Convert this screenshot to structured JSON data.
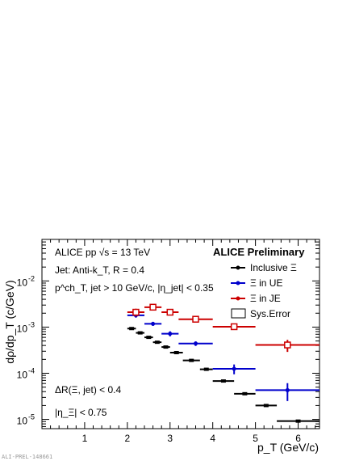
{
  "chart_data": {
    "type": "scatter",
    "title": "ALICE Preliminary",
    "xlabel": "p_T (GeV/c)",
    "ylabel": "dρ/dp_T (c/GeV)",
    "xlim": [
      0,
      6.5
    ],
    "ylim_log": [
      -5.2,
      -1.1
    ],
    "y_scale": "log",
    "x_ticks": [
      1,
      2,
      3,
      4,
      5,
      6
    ],
    "y_ticks": [
      {
        "exp": -5,
        "label": "10"
      },
      {
        "exp": -4,
        "label": "10"
      },
      {
        "exp": -3,
        "label": "10"
      },
      {
        "exp": -2,
        "label": "10"
      }
    ],
    "legend_position": "top-right",
    "legend": [
      {
        "label": "Inclusive Ξ",
        "color": "#000000"
      },
      {
        "label": "Ξ in UE",
        "color": "#0000cc"
      },
      {
        "label": "Ξ in JE",
        "color": "#cc0000"
      },
      {
        "label": "Sys.Error",
        "color": "#000000"
      }
    ],
    "annotations": [
      "ALICE pp √s = 13 TeV",
      "Jet: Anti-k_T, R = 0.4",
      "p^ch_T, jet > 10 GeV/c, |η_jet| < 0.35",
      "ΔR(Ξ, jet) < 0.4",
      "|η_Ξ| < 0.75"
    ],
    "watermark": "ALI-PREL-148661",
    "series": [
      {
        "name": "Inclusive Ξ",
        "color": "#000000",
        "marker": "filled-square",
        "points": [
          {
            "x": 2.1,
            "xerr": 0.1,
            "y": 0.00093
          },
          {
            "x": 2.3,
            "xerr": 0.1,
            "y": 0.00075
          },
          {
            "x": 2.5,
            "xerr": 0.1,
            "y": 0.0006
          },
          {
            "x": 2.7,
            "xerr": 0.1,
            "y": 0.00047
          },
          {
            "x": 2.9,
            "xerr": 0.1,
            "y": 0.00037
          },
          {
            "x": 3.15,
            "xerr": 0.15,
            "y": 0.00028
          },
          {
            "x": 3.5,
            "xerr": 0.2,
            "y": 0.00019
          },
          {
            "x": 3.85,
            "xerr": 0.15,
            "y": 0.000122
          },
          {
            "x": 4.25,
            "xerr": 0.25,
            "y": 6.8e-05
          },
          {
            "x": 4.75,
            "xerr": 0.25,
            "y": 3.6e-05
          },
          {
            "x": 5.25,
            "xerr": 0.25,
            "y": 2e-05
          },
          {
            "x": 6.0,
            "xerr": 0.5,
            "y": 9.2e-06
          }
        ]
      },
      {
        "name": "Ξ in UE",
        "color": "#0000cc",
        "marker": "filled-circle",
        "points": [
          {
            "x": 2.2,
            "xerr": 0.2,
            "y": 0.0018,
            "yerr": 0.0002
          },
          {
            "x": 2.6,
            "xerr": 0.2,
            "y": 0.00118,
            "yerr": 0.00012
          },
          {
            "x": 3.0,
            "xerr": 0.2,
            "y": 0.00072,
            "yerr": 9e-05
          },
          {
            "x": 3.6,
            "xerr": 0.4,
            "y": 0.00044,
            "yerr": 5e-05
          },
          {
            "x": 4.5,
            "xerr": 0.5,
            "y": 0.000125,
            "yerr": 3e-05
          },
          {
            "x": 5.75,
            "xerr": 0.75,
            "y": 4.3e-05,
            "yerr": 1.8e-05
          }
        ]
      },
      {
        "name": "Ξ in JE",
        "color": "#cc0000",
        "marker": "open-square",
        "points": [
          {
            "x": 2.2,
            "xerr": 0.2,
            "y": 0.0021,
            "yerr": 0.0004
          },
          {
            "x": 2.6,
            "xerr": 0.2,
            "y": 0.0027,
            "yerr": 0.0004
          },
          {
            "x": 3.0,
            "xerr": 0.2,
            "y": 0.0021,
            "yerr": 0.0003
          },
          {
            "x": 3.6,
            "xerr": 0.4,
            "y": 0.00148,
            "yerr": 0.0002
          },
          {
            "x": 4.5,
            "xerr": 0.5,
            "y": 0.00102,
            "yerr": 0.00015
          },
          {
            "x": 5.75,
            "xerr": 0.75,
            "y": 0.00041,
            "yerr": 0.00012
          }
        ]
      }
    ]
  }
}
